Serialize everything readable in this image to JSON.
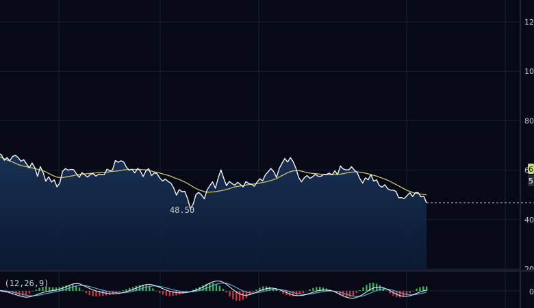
{
  "chart_data": {
    "type": "area",
    "price_series_name": "",
    "moving_average_name": "",
    "low_annotation": "48.50",
    "y_ticks": [
      "20",
      "40",
      "60",
      "80",
      "100",
      "120"
    ],
    "price_badge": "6",
    "price_badge_sub": "5",
    "price": [
      66.4,
      66.8,
      66.2,
      64.0,
      65.1,
      63.8,
      65.5,
      66.0,
      65.1,
      63.6,
      64.2,
      62.6,
      60.9,
      62.9,
      61.0,
      57.5,
      61.4,
      59.0,
      55.5,
      57.3,
      55.2,
      56.1,
      53.2,
      54.8,
      59.5,
      60.6,
      60.0,
      60.3,
      60.2,
      58.5,
      57.1,
      59.0,
      58.1,
      57.2,
      58.3,
      58.6,
      57.6,
      58.4,
      58.2,
      58.2,
      60.4,
      59.8,
      60.1,
      63.9,
      63.2,
      63.8,
      63.3,
      61.2,
      60.0,
      60.4,
      58.9,
      60.7,
      59.7,
      57.4,
      59.7,
      60.6,
      57.8,
      58.9,
      58.6,
      56.8,
      55.6,
      56.4,
      55.4,
      54.7,
      52.8,
      49.9,
      52.1,
      51.3,
      51.4,
      48.5,
      44.4,
      46.2,
      50.1,
      51.0,
      50.0,
      48.4,
      51.9,
      53.7,
      55.3,
      52.7,
      56.7,
      60.1,
      56.7,
      53.7,
      55.4,
      54.6,
      53.9,
      55.1,
      54.2,
      53.2,
      55.4,
      54.6,
      54.3,
      53.5,
      55.2,
      56.5,
      55.7,
      58.1,
      59.4,
      60.7,
      59.4,
      57.1,
      60.7,
      62.8,
      64.7,
      63.3,
      65.1,
      63.4,
      60.7,
      57.0,
      55.3,
      56.9,
      57.8,
      56.7,
      57.3,
      58.3,
      57.5,
      57.5,
      58.3,
      58.3,
      58.8,
      58.1,
      59.7,
      58.2,
      61.7,
      60.5,
      60.1,
      60.1,
      61.4,
      60.0,
      59.1,
      56.6,
      54.8,
      56.9,
      56.1,
      58.2,
      55.5,
      56.1,
      53.8,
      53.1,
      54.1,
      52.5,
      51.9,
      51.9,
      51.4,
      48.8,
      48.9,
      48.5,
      49.7,
      50.9,
      49.3,
      50.9,
      50.9,
      49.2,
      49.5,
      46.8
    ],
    "moving_average": [
      66.2,
      65.6,
      65.1,
      64.6,
      64.1,
      63.7,
      63.3,
      62.8,
      62.3,
      61.9,
      61.6,
      61.4,
      61.1,
      60.9,
      60.6,
      60.4,
      60.1,
      59.7,
      59.3,
      58.7,
      58.1,
      57.6,
      57.2,
      57.0,
      57.0,
      57.2,
      57.4,
      57.6,
      57.8,
      58.1,
      58.3,
      58.4,
      58.5,
      58.6,
      58.7,
      58.8,
      58.9,
      59.0,
      59.1,
      59.1,
      59.2,
      59.4,
      59.5,
      59.6,
      59.7,
      59.9,
      60.1,
      60.2,
      60.2,
      60.3,
      60.3,
      60.3,
      60.3,
      60.2,
      60.1,
      59.9,
      59.6,
      59.3,
      59.1,
      58.8,
      58.5,
      58.2,
      57.9,
      57.5,
      57.0,
      56.6,
      56.2,
      55.7,
      55.2,
      54.6,
      53.9,
      53.2,
      52.6,
      52.1,
      51.7,
      51.3,
      51.1,
      51.1,
      51.2,
      51.3,
      51.5,
      51.7,
      51.9,
      52.2,
      52.5,
      52.9,
      53.2,
      53.4,
      53.6,
      53.8,
      54.0,
      54.2,
      54.3,
      54.4,
      54.6,
      54.8,
      55.0,
      55.2,
      55.5,
      55.8,
      56.2,
      56.6,
      57.2,
      57.8,
      58.4,
      59.0,
      59.4,
      59.7,
      59.8,
      59.8,
      59.6,
      59.3,
      59.0,
      58.8,
      58.7,
      58.6,
      58.5,
      58.3,
      58.2,
      58.2,
      58.2,
      58.2,
      58.2,
      58.3,
      58.4,
      58.6,
      58.8,
      59.0,
      59.2,
      59.3,
      59.3,
      59.2,
      59.0,
      58.8,
      58.5,
      58.2,
      57.9,
      57.6,
      57.2,
      56.8,
      56.4,
      55.9,
      55.4,
      54.8,
      54.2,
      53.6,
      53.0,
      52.4,
      51.8,
      51.4,
      51.0,
      50.7,
      50.5,
      50.3,
      50.2,
      50.0
    ],
    "macd_label": "D (12,26,9)",
    "macd_zero_tick": "0",
    "macd_line": [
      0.2,
      0.1,
      -0.1,
      -0.3,
      -0.6,
      -1.0,
      -1.4,
      -1.8,
      -2.1,
      -2.3,
      -2.2,
      -1.9,
      -1.5,
      -1.0,
      -0.6,
      -0.3,
      -0.1,
      0.1,
      0.3,
      0.6,
      1.0,
      1.5,
      2.0,
      2.5,
      2.7,
      2.6,
      2.1,
      1.5,
      0.9,
      0.4,
      0.0,
      -0.3,
      -0.6,
      -0.8,
      -1.0,
      -1.1,
      -1.0,
      -0.9,
      -0.6,
      -0.3,
      0.1,
      0.5,
      1.0,
      1.5,
      2.0,
      2.3,
      2.4,
      2.2,
      1.8,
      1.3,
      0.8,
      0.3,
      -0.1,
      -0.4,
      -0.6,
      -0.7,
      -0.7,
      -0.6,
      -0.4,
      -0.1,
      0.3,
      0.8,
      1.4,
      2.1,
      2.8,
      3.3,
      3.6,
      3.6,
      3.2,
      2.5,
      1.5,
      0.5,
      -0.4,
      -1.1,
      -1.5,
      -1.6,
      -1.4,
      -1.0,
      -0.5,
      0.0,
      0.5,
      0.8,
      1.0,
      1.0,
      0.8,
      0.4,
      -0.1,
      -0.6,
      -1.1,
      -1.5,
      -1.7,
      -1.7,
      -1.6,
      -1.3,
      -0.9,
      -0.5,
      -0.1,
      0.2,
      0.3,
      0.3,
      0.2,
      -0.1,
      -0.6,
      -1.2,
      -1.8,
      -2.3,
      -2.6,
      -2.7,
      -2.4,
      -1.9,
      -1.2,
      -0.4,
      0.4,
      1.0,
      1.3,
      1.4,
      1.2,
      0.7,
      0.1,
      -0.6,
      -1.2,
      -1.7,
      -2.0,
      -2.0,
      -1.8,
      -1.4,
      -0.9,
      -0.4,
      0.0,
      0.3
    ]
  }
}
